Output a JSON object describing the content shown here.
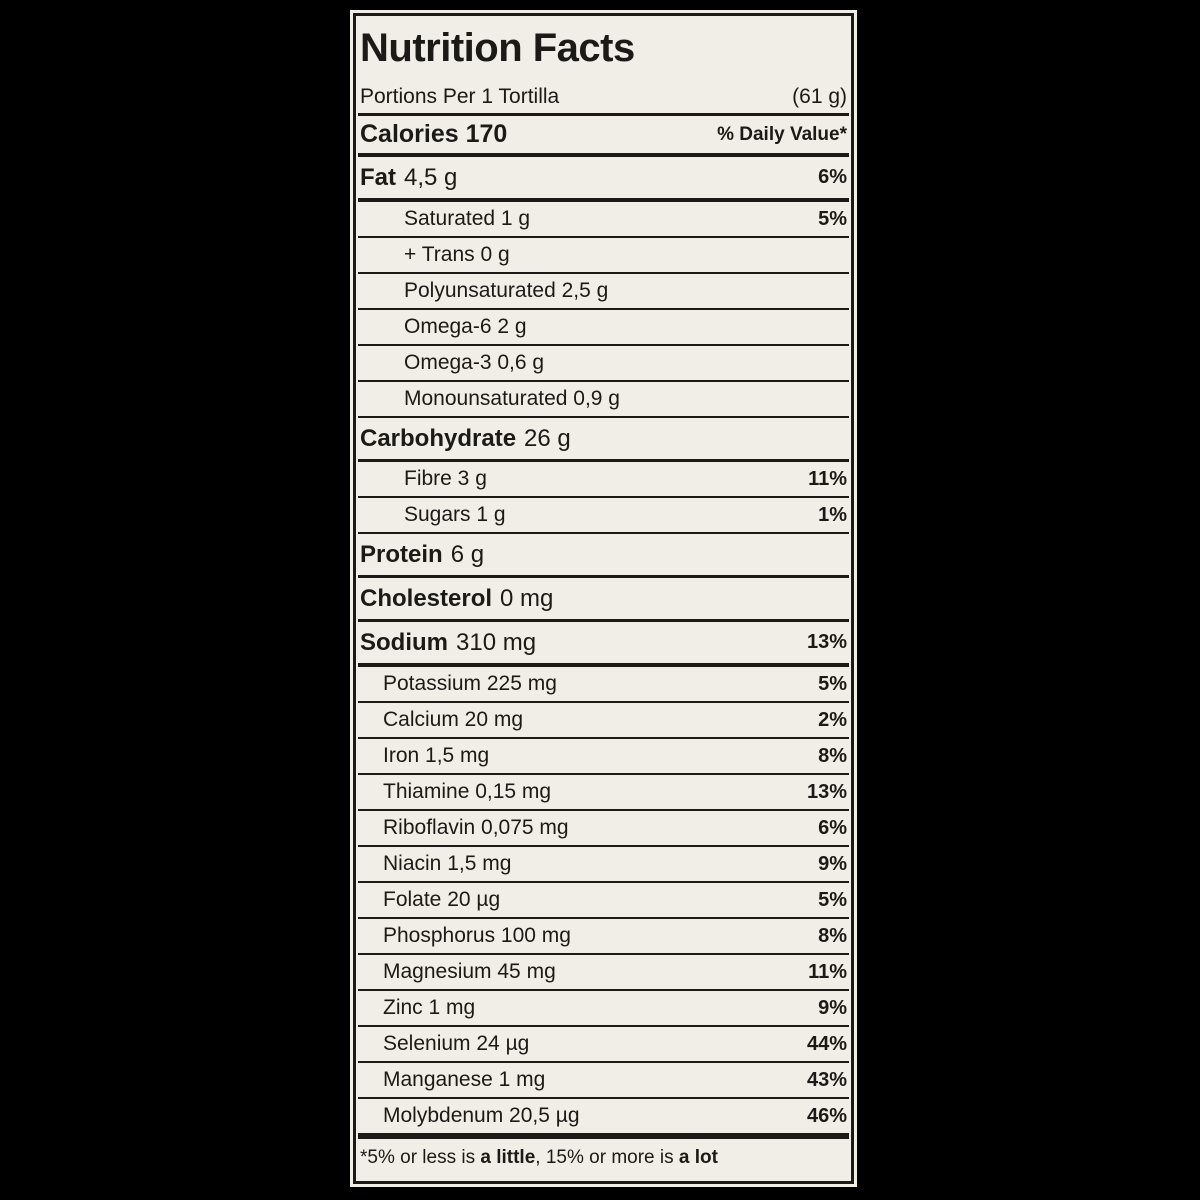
{
  "title": "Nutrition Facts",
  "serving_row": {
    "label": "Portions Per 1 Tortilla",
    "amount": "(61 g)"
  },
  "calories_row": {
    "label": "Calories 170",
    "daily_value_header": "% Daily Value*"
  },
  "nutrient_rows": [
    {
      "name": "Fat",
      "amount": "4,5 g",
      "percent": "6%",
      "style": "primary",
      "indent": 0,
      "rule": "thick"
    },
    {
      "name": "",
      "amount": "Saturated 1 g",
      "percent": "5%",
      "style": "sub",
      "indent": 2,
      "rule": "thin"
    },
    {
      "name": "",
      "amount": "+ Trans 0 g",
      "percent": "",
      "style": "sub",
      "indent": 2,
      "rule": "thin"
    },
    {
      "name": "",
      "amount": "Polyunsaturated 2,5 g",
      "percent": "",
      "style": "sub",
      "indent": 2,
      "rule": "thin"
    },
    {
      "name": "",
      "amount": "Omega-6 2 g",
      "percent": "",
      "style": "sub",
      "indent": 2,
      "rule": "thin"
    },
    {
      "name": "",
      "amount": "Omega-3 0,6 g",
      "percent": "",
      "style": "sub",
      "indent": 2,
      "rule": "thin"
    },
    {
      "name": "",
      "amount": "Monounsaturated 0,9 g",
      "percent": "",
      "style": "sub",
      "indent": 2,
      "rule": "thin"
    },
    {
      "name": "Carbohydrate",
      "amount": "26 g",
      "percent": "",
      "style": "primary",
      "indent": 0,
      "rule": "medium"
    },
    {
      "name": "",
      "amount": "Fibre 3 g",
      "percent": "11%",
      "style": "sub",
      "indent": 2,
      "rule": "thin"
    },
    {
      "name": "",
      "amount": "Sugars 1 g",
      "percent": "1%",
      "style": "sub",
      "indent": 2,
      "rule": "thin"
    },
    {
      "name": "Protein",
      "amount": "6 g",
      "percent": "",
      "style": "primary",
      "indent": 0,
      "rule": "medium"
    },
    {
      "name": "Cholesterol",
      "amount": "0 mg",
      "percent": "",
      "style": "primary",
      "indent": 0,
      "rule": "medium"
    },
    {
      "name": "Sodium",
      "amount": "310 mg",
      "percent": "13%",
      "style": "primary",
      "indent": 0,
      "rule": "thick"
    },
    {
      "name": "",
      "amount": "Potassium 225 mg",
      "percent": "5%",
      "style": "sub",
      "indent": 1,
      "rule": "thin"
    },
    {
      "name": "",
      "amount": "Calcium 20 mg",
      "percent": "2%",
      "style": "sub",
      "indent": 1,
      "rule": "thin"
    },
    {
      "name": "",
      "amount": "Iron 1,5 mg",
      "percent": "8%",
      "style": "sub",
      "indent": 1,
      "rule": "thin"
    },
    {
      "name": "",
      "amount": "Thiamine 0,15 mg",
      "percent": "13%",
      "style": "sub",
      "indent": 1,
      "rule": "thin"
    },
    {
      "name": "",
      "amount": "Riboflavin 0,075 mg",
      "percent": "6%",
      "style": "sub",
      "indent": 1,
      "rule": "thin"
    },
    {
      "name": "",
      "amount": "Niacin 1,5 mg",
      "percent": "9%",
      "style": "sub",
      "indent": 1,
      "rule": "thin"
    },
    {
      "name": "",
      "amount": "Folate 20 µg",
      "percent": "5%",
      "style": "sub",
      "indent": 1,
      "rule": "thin"
    },
    {
      "name": "",
      "amount": "Phosphorus 100 mg",
      "percent": "8%",
      "style": "sub",
      "indent": 1,
      "rule": "thin"
    },
    {
      "name": "",
      "amount": "Magnesium 45 mg",
      "percent": "11%",
      "style": "sub",
      "indent": 1,
      "rule": "thin"
    },
    {
      "name": "",
      "amount": "Zinc 1 mg",
      "percent": "9%",
      "style": "sub",
      "indent": 1,
      "rule": "thin"
    },
    {
      "name": "",
      "amount": "Selenium 24 µg",
      "percent": "44%",
      "style": "sub",
      "indent": 1,
      "rule": "thin"
    },
    {
      "name": "",
      "amount": "Manganese 1 mg",
      "percent": "43%",
      "style": "sub",
      "indent": 1,
      "rule": "thin"
    },
    {
      "name": "",
      "amount": "Molybdenum 20,5 µg",
      "percent": "46%",
      "style": "sub",
      "indent": 1,
      "rule": "final"
    }
  ],
  "footnote": {
    "parts": [
      {
        "text": "*5% or less is ",
        "bold": false
      },
      {
        "text": "a little",
        "bold": true
      },
      {
        "text": ", 15% or more is ",
        "bold": false
      },
      {
        "text": "a lot",
        "bold": true
      }
    ]
  },
  "colors": {
    "page_background": "#000000",
    "label_background": "#f1eee7",
    "text": "#1b1a16",
    "rule": "#1b1a16"
  }
}
